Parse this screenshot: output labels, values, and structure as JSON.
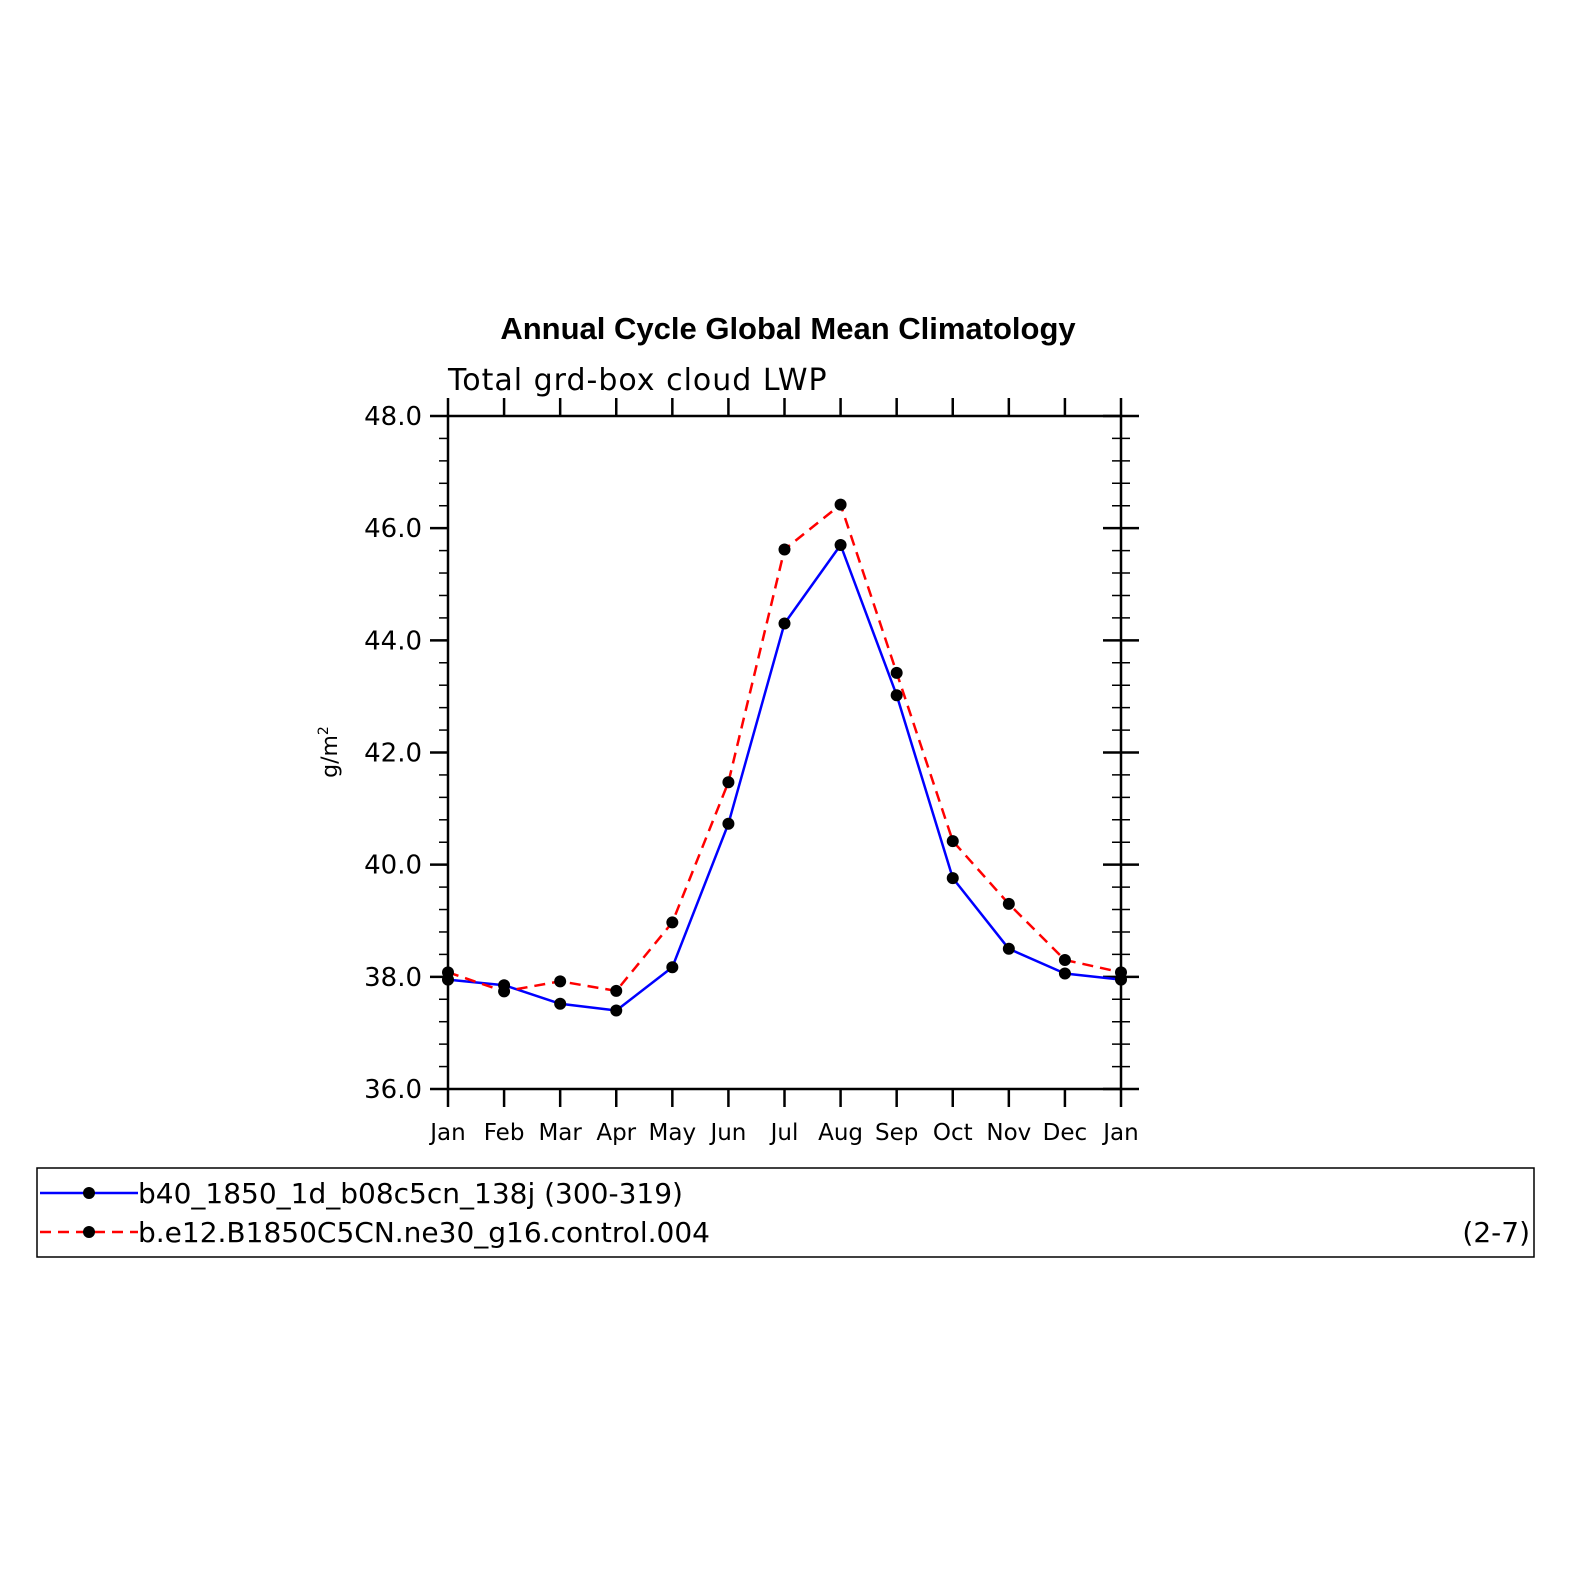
{
  "chart_data": {
    "type": "line",
    "title": "Annual Cycle Global Mean Climatology",
    "subtitle": "Total grd-box cloud LWP",
    "ylabel": "g/m",
    "ylabel_superscript": "2",
    "xlabel": "",
    "categories": [
      "Jan",
      "Feb",
      "Mar",
      "Apr",
      "May",
      "Jun",
      "Jul",
      "Aug",
      "Sep",
      "Oct",
      "Nov",
      "Dec",
      "Jan"
    ],
    "ylim": [
      36.0,
      48.0
    ],
    "yticks": [
      36.0,
      38.0,
      40.0,
      42.0,
      44.0,
      46.0,
      48.0
    ],
    "ytick_labels": [
      "36.0",
      "38.0",
      "40.0",
      "42.0",
      "44.0",
      "46.0",
      "48.0"
    ],
    "series": [
      {
        "name": "b40_1850_1d_b08c5cn_138j (300-319)",
        "color": "#0000ff",
        "dash": "solid",
        "values": [
          37.95,
          37.85,
          37.52,
          37.4,
          38.17,
          40.73,
          44.3,
          45.7,
          43.02,
          39.76,
          38.5,
          38.06,
          37.95
        ]
      },
      {
        "name": "b.e12.B1850C5CN.ne30_g16.control.004",
        "color": "#ff0000",
        "dash": "dashed",
        "values": [
          38.08,
          37.74,
          37.92,
          37.75,
          38.97,
          41.47,
          45.62,
          46.42,
          43.42,
          40.42,
          39.3,
          38.3,
          38.08
        ]
      }
    ],
    "legend_placement": "bottom",
    "annotation": "(2-7)"
  }
}
